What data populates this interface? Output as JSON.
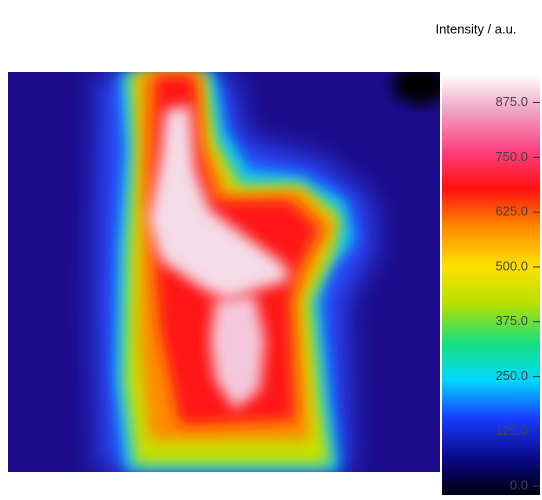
{
  "chart_data": {
    "type": "heatmap",
    "title": "Intensity / a.u.",
    "colormap": [
      "#000010",
      "#0a0a8c",
      "#1a3cff",
      "#00d8ff",
      "#19e07a",
      "#b8e000",
      "#ffe000",
      "#ff8a00",
      "#ff1010",
      "#ff4080",
      "#f0a0c0",
      "#ffffff"
    ],
    "clim": [
      -20,
      940
    ],
    "cticks": [
      {
        "value": 0,
        "label": "0.0"
      },
      {
        "value": 125,
        "label": "125.0"
      },
      {
        "value": 250,
        "label": "250.0"
      },
      {
        "value": 375,
        "label": "375.0"
      },
      {
        "value": 500,
        "label": "500.0"
      },
      {
        "value": 625,
        "label": "625.0"
      },
      {
        "value": 750,
        "label": "750.0"
      },
      {
        "value": 875,
        "label": "875.0"
      }
    ]
  }
}
